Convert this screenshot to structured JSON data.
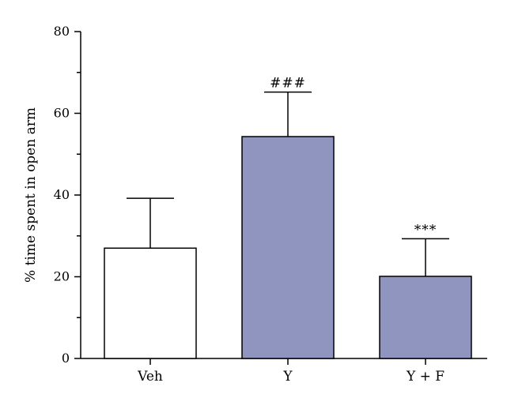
{
  "chart_data": {
    "type": "bar",
    "categories": [
      "Veh",
      "Y",
      "Y + F"
    ],
    "values": [
      27,
      54.3,
      20.1
    ],
    "errors": [
      12.2,
      10.9,
      9.2
    ],
    "annotations": [
      "",
      "###",
      "***"
    ],
    "bar_colors": [
      "#ffffff",
      "#8f95be",
      "#8f95be"
    ],
    "ylabel": "% time spent in open arm",
    "ylim": [
      0,
      80
    ],
    "yticks": [
      0,
      20,
      40,
      60,
      80
    ],
    "grid": false
  }
}
